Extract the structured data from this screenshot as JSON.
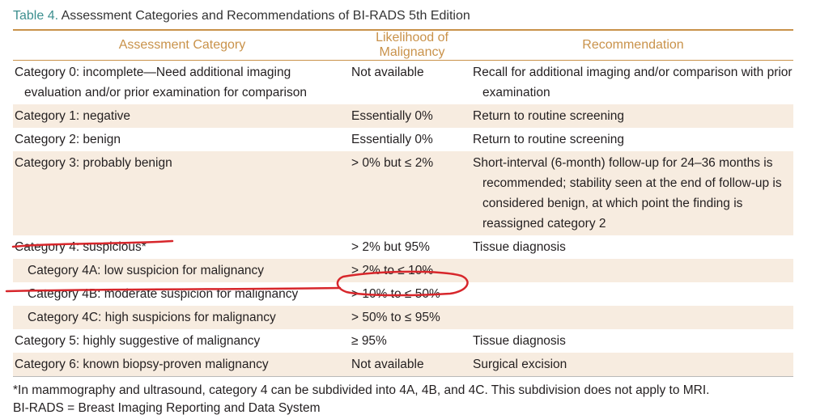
{
  "caption": {
    "label": "Table 4.",
    "text": "Assessment Categories and Recommendations of BI-RADS 5th Edition"
  },
  "headers": [
    "Assessment Category",
    "Likelihood of Malignancy",
    "Recommendation"
  ],
  "rows": [
    {
      "category": "Category 0: incomplete—Need additional imaging evaluation and/or prior examination for comparison",
      "likelihood": "Not available",
      "recommendation": "Recall for additional imaging and/or comparison with prior examination"
    },
    {
      "category": "Category 1: negative",
      "likelihood": "Essentially 0%",
      "recommendation": "Return to routine screening"
    },
    {
      "category": "Category 2: benign",
      "likelihood": "Essentially 0%",
      "recommendation": "Return to routine screening"
    },
    {
      "category": "Category 3: probably benign",
      "likelihood": "> 0% but ≤ 2%",
      "recommendation": "Short-interval (6-month) follow-up for 24–36 months is recommended; stability seen at the end of follow-up is considered benign, at which point the finding is reassigned category 2"
    },
    {
      "category": "Category 4: suspicious*",
      "likelihood": "> 2% but 95%",
      "recommendation": "Tissue diagnosis"
    },
    {
      "category": "Category 4A: low suspicion for malignancy",
      "likelihood": "> 2% to ≤ 10%",
      "recommendation": ""
    },
    {
      "category": "Category 4B: moderate suspicion for malignancy",
      "likelihood": "> 10% to ≤ 50%",
      "recommendation": ""
    },
    {
      "category": "Category 4C: high suspicions for malignancy",
      "likelihood": "> 50% to ≤ 95%",
      "recommendation": ""
    },
    {
      "category": "Category 5: highly suggestive of malignancy",
      "likelihood": "≥ 95%",
      "recommendation": "Tissue diagnosis"
    },
    {
      "category": "Category 6: known biopsy-proven malignancy",
      "likelihood": "Not available",
      "recommendation": "Surgical excision"
    }
  ],
  "footnotes": [
    "*In mammography and ultrasound, category 4 can be subdivided into 4A, 4B, and 4C. This subdivision does not apply to MRI.",
    "BI-RADS = Breast Imaging Reporting and Data System"
  ],
  "colors": {
    "accent": "#c9924a",
    "caption_label": "#3d8f8f",
    "row_shade": "#f7ece0",
    "annotation": "#d7262b"
  }
}
